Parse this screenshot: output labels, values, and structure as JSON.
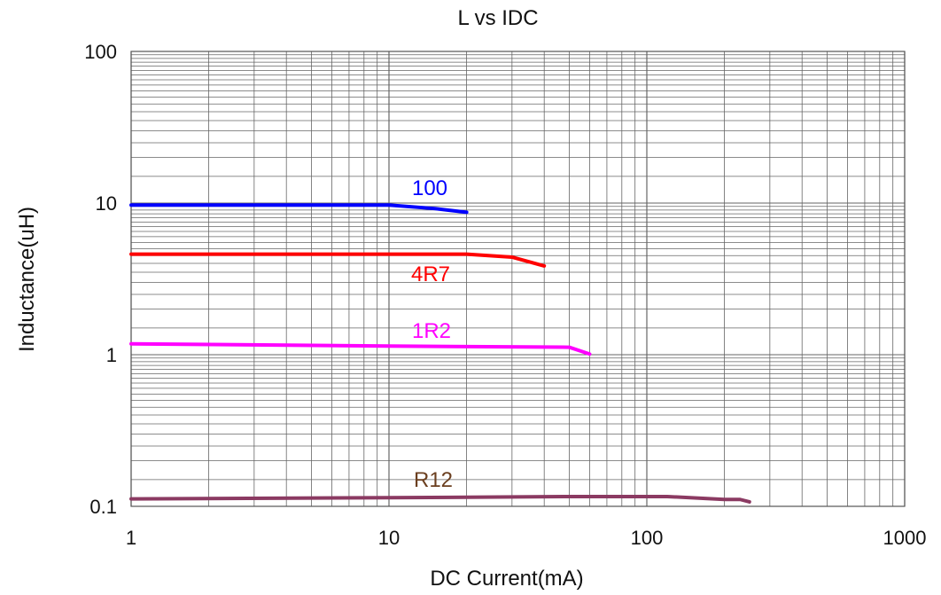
{
  "chart_data": {
    "type": "line",
    "title": "L vs IDC",
    "xlabel": "DC Current(mA)",
    "ylabel": "Inductance(uH)",
    "x_scale": "log",
    "y_scale": "log",
    "xlim": [
      1,
      1000
    ],
    "ylim": [
      0.1,
      100
    ],
    "grid": true,
    "x_ticks": [
      "1",
      "10",
      "100",
      "1000"
    ],
    "y_ticks": [
      "100",
      "10",
      "1",
      "0.1"
    ],
    "series": [
      {
        "name": "100",
        "color": "#0000ff",
        "points": [
          [
            1,
            9.7
          ],
          [
            10,
            9.7
          ],
          [
            15,
            9.2
          ],
          [
            20,
            8.7
          ]
        ]
      },
      {
        "name": "4R7",
        "color": "#ff0000",
        "points": [
          [
            1,
            4.6
          ],
          [
            20,
            4.6
          ],
          [
            30,
            4.4
          ],
          [
            40,
            3.85
          ]
        ]
      },
      {
        "name": "1R2",
        "color": "#ff00ff",
        "points": [
          [
            1,
            1.18
          ],
          [
            10,
            1.14
          ],
          [
            50,
            1.12
          ],
          [
            60,
            1.01
          ]
        ]
      },
      {
        "name": "R12",
        "color": "#8b3a62",
        "points": [
          [
            1,
            0.112
          ],
          [
            10,
            0.114
          ],
          [
            50,
            0.116
          ],
          [
            120,
            0.116
          ],
          [
            200,
            0.111
          ],
          [
            230,
            0.111
          ],
          [
            250,
            0.107
          ]
        ]
      }
    ],
    "label_colors": {
      "100": "#0000ff",
      "4R7": "#ff0000",
      "1R2": "#ff00ff",
      "R12": "#6b3f1f"
    }
  }
}
